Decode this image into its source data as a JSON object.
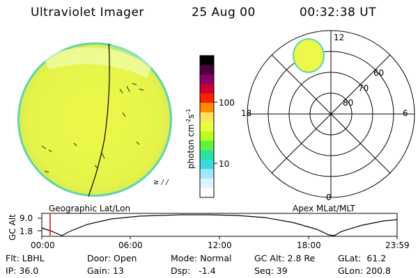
{
  "header": {
    "title": "Ultraviolet Imager",
    "date": "25 Aug 00",
    "time": "00:32:38 UT"
  },
  "left_panel": {
    "caption": "Geographic Lat/Lon",
    "corner_mark": "≥ / /"
  },
  "colorbar": {
    "unit_label_prefix": "photon cm",
    "unit_exp1": "-2",
    "unit_mid": "s",
    "unit_exp2": "-1",
    "tick_100": "100",
    "tick_10": "10",
    "colors": [
      "#000000",
      "#4b0040",
      "#8a0068",
      "#c80030",
      "#ff2000",
      "#ff8c00",
      "#ffe060",
      "#e8ff40",
      "#b8ff20",
      "#60f040",
      "#30e0a0",
      "#40d8e0",
      "#a0e8ff",
      "#e0f4ff",
      "#ffffff"
    ]
  },
  "right_panel": {
    "caption": "Apex MLat/MLT",
    "mlt_top": "12",
    "mlt_bottom": "0",
    "mlt_left": "18",
    "mlt_right": "6",
    "lat_60": "60",
    "lat_70": "70",
    "lat_80": "80"
  },
  "altitude_plot": {
    "ylabel": "GC Alt",
    "ytick_top": "9.0",
    "ytick_bottom": "1.8",
    "xticks": [
      "00:00",
      "06:00",
      "12:00",
      "18:00",
      "23:59"
    ],
    "marker_color": "#dd0000"
  },
  "info": {
    "filter_label": "Flt:",
    "filter_value": "LBHL",
    "door_label": "Door:",
    "door_value": "Open",
    "mode_label": "Mode:",
    "mode_value": "Normal",
    "gcalt_label": "GC Alt:",
    "gcalt_value": "2.8 Re",
    "glat_label": "GLat:",
    "glat_value": "61.2",
    "ip_label": "IP:",
    "ip_value": "36.0",
    "gain_label": "Gain:",
    "gain_value": "13",
    "dsp_label": "Dsp:",
    "dsp_value": "-1.4",
    "seq_label": "Seq:",
    "seq_value": "39",
    "glon_label": "GLon:",
    "glon_value": "200.8"
  }
}
